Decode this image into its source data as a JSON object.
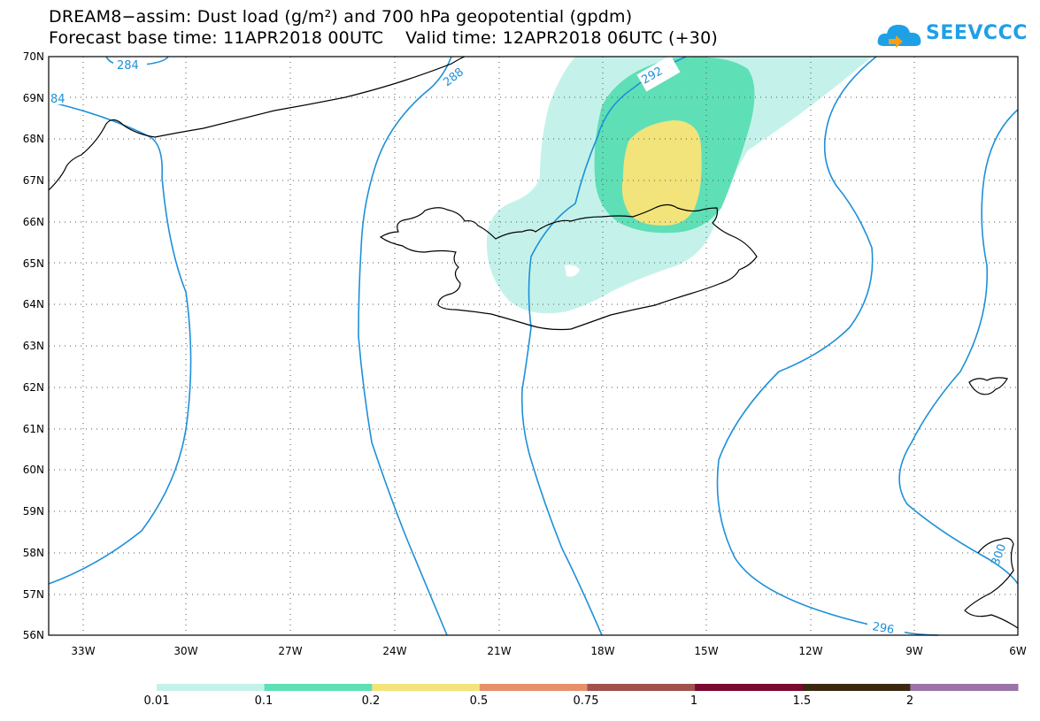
{
  "title_line1": "DREAM8−assim: Dust load (g/m²) and 700 hPa geopotential (gpdm)",
  "title_line2": "Forecast base time: 11APR2018 00UTC    Valid time: 12APR2018 06UTC (+30)",
  "logo": {
    "text": "SEEVCCC",
    "icon": "cloud-icon"
  },
  "map": {
    "lat_labels": [
      "70N",
      "69N",
      "68N",
      "67N",
      "66N",
      "65N",
      "64N",
      "63N",
      "62N",
      "61N",
      "60N",
      "59N",
      "58N",
      "57N",
      "56N"
    ],
    "lon_labels": [
      "33W",
      "30W",
      "27W",
      "24W",
      "21W",
      "18W",
      "15W",
      "12W",
      "9W",
      "6W"
    ],
    "contour_labels": [
      "284",
      "288",
      "292",
      "296",
      "84",
      "300"
    ],
    "colors": {
      "contour": "#1e90d8",
      "coast": "#000000",
      "dust_low": "#c4f2ea",
      "dust_mid": "#5fdfb6",
      "dust_high": "#f2e47a"
    }
  },
  "colorbar": {
    "labels": [
      "0.01",
      "0.1",
      "0.2",
      "0.5",
      "0.75",
      "1",
      "1.5",
      "2"
    ],
    "colors": [
      "#c4f2ea",
      "#5fdfb6",
      "#f2e47a",
      "#e6906a",
      "#a0524e",
      "#7a0a32",
      "#3c2810",
      "#9a74a8"
    ]
  }
}
